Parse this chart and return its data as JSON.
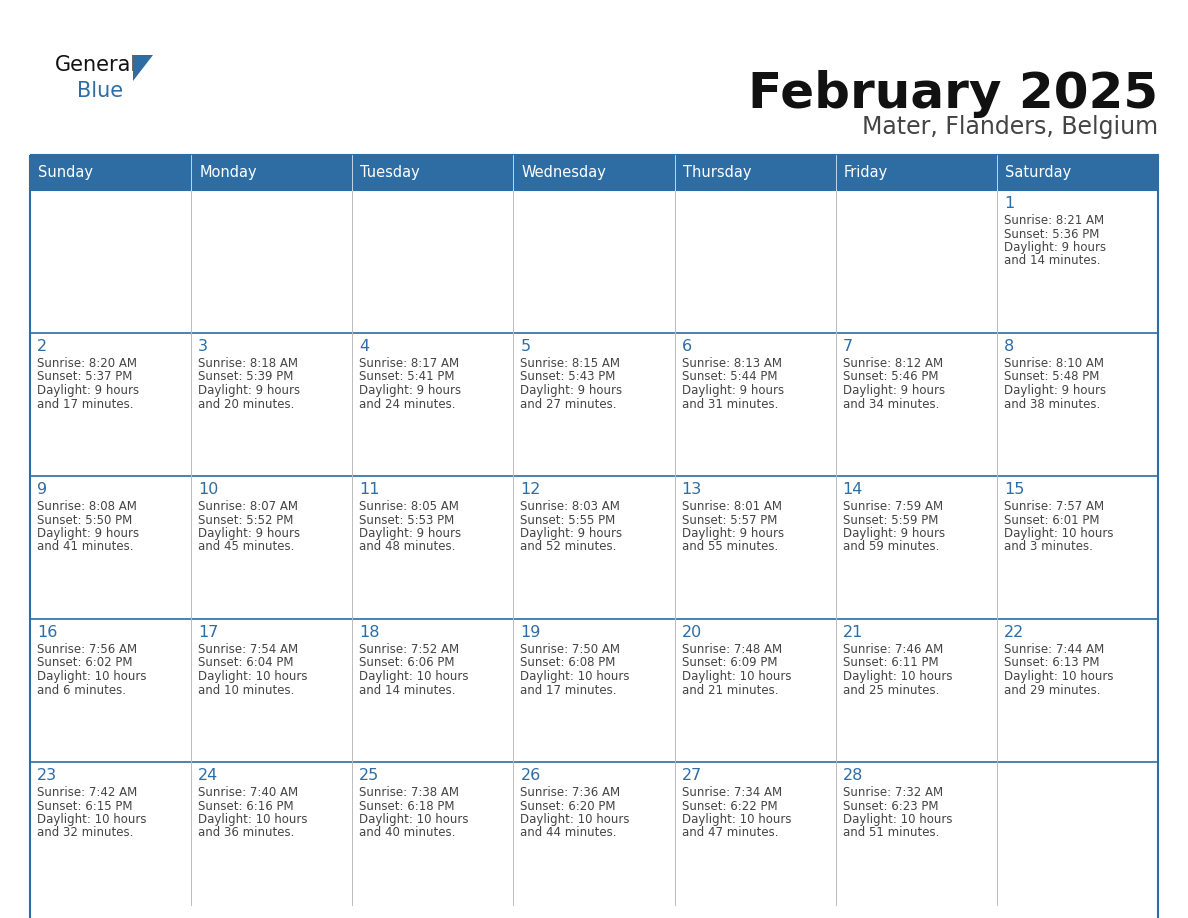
{
  "title": "February 2025",
  "subtitle": "Mater, Flanders, Belgium",
  "days_of_week": [
    "Sunday",
    "Monday",
    "Tuesday",
    "Wednesday",
    "Thursday",
    "Friday",
    "Saturday"
  ],
  "header_bg": "#2E6DA4",
  "header_text": "#FFFFFF",
  "cell_bg": "#FFFFFF",
  "row_separator_color": "#2E6DA4",
  "col_separator_color": "#CCCCCC",
  "text_color": "#444444",
  "day_number_color": "#2E6DA4",
  "title_color": "#111111",
  "subtitle_color": "#444444",
  "logo_text_color": "#111111",
  "logo_blue_color": "#2E6DA4",
  "calendar_data": {
    "1": {
      "sunrise": "8:21 AM",
      "sunset": "5:36 PM",
      "daylight": "9 hours and 14 minutes."
    },
    "2": {
      "sunrise": "8:20 AM",
      "sunset": "5:37 PM",
      "daylight": "9 hours and 17 minutes."
    },
    "3": {
      "sunrise": "8:18 AM",
      "sunset": "5:39 PM",
      "daylight": "9 hours and 20 minutes."
    },
    "4": {
      "sunrise": "8:17 AM",
      "sunset": "5:41 PM",
      "daylight": "9 hours and 24 minutes."
    },
    "5": {
      "sunrise": "8:15 AM",
      "sunset": "5:43 PM",
      "daylight": "9 hours and 27 minutes."
    },
    "6": {
      "sunrise": "8:13 AM",
      "sunset": "5:44 PM",
      "daylight": "9 hours and 31 minutes."
    },
    "7": {
      "sunrise": "8:12 AM",
      "sunset": "5:46 PM",
      "daylight": "9 hours and 34 minutes."
    },
    "8": {
      "sunrise": "8:10 AM",
      "sunset": "5:48 PM",
      "daylight": "9 hours and 38 minutes."
    },
    "9": {
      "sunrise": "8:08 AM",
      "sunset": "5:50 PM",
      "daylight": "9 hours and 41 minutes."
    },
    "10": {
      "sunrise": "8:07 AM",
      "sunset": "5:52 PM",
      "daylight": "9 hours and 45 minutes."
    },
    "11": {
      "sunrise": "8:05 AM",
      "sunset": "5:53 PM",
      "daylight": "9 hours and 48 minutes."
    },
    "12": {
      "sunrise": "8:03 AM",
      "sunset": "5:55 PM",
      "daylight": "9 hours and 52 minutes."
    },
    "13": {
      "sunrise": "8:01 AM",
      "sunset": "5:57 PM",
      "daylight": "9 hours and 55 minutes."
    },
    "14": {
      "sunrise": "7:59 AM",
      "sunset": "5:59 PM",
      "daylight": "9 hours and 59 minutes."
    },
    "15": {
      "sunrise": "7:57 AM",
      "sunset": "6:01 PM",
      "daylight": "10 hours and 3 minutes."
    },
    "16": {
      "sunrise": "7:56 AM",
      "sunset": "6:02 PM",
      "daylight": "10 hours and 6 minutes."
    },
    "17": {
      "sunrise": "7:54 AM",
      "sunset": "6:04 PM",
      "daylight": "10 hours and 10 minutes."
    },
    "18": {
      "sunrise": "7:52 AM",
      "sunset": "6:06 PM",
      "daylight": "10 hours and 14 minutes."
    },
    "19": {
      "sunrise": "7:50 AM",
      "sunset": "6:08 PM",
      "daylight": "10 hours and 17 minutes."
    },
    "20": {
      "sunrise": "7:48 AM",
      "sunset": "6:09 PM",
      "daylight": "10 hours and 21 minutes."
    },
    "21": {
      "sunrise": "7:46 AM",
      "sunset": "6:11 PM",
      "daylight": "10 hours and 25 minutes."
    },
    "22": {
      "sunrise": "7:44 AM",
      "sunset": "6:13 PM",
      "daylight": "10 hours and 29 minutes."
    },
    "23": {
      "sunrise": "7:42 AM",
      "sunset": "6:15 PM",
      "daylight": "10 hours and 32 minutes."
    },
    "24": {
      "sunrise": "7:40 AM",
      "sunset": "6:16 PM",
      "daylight": "10 hours and 36 minutes."
    },
    "25": {
      "sunrise": "7:38 AM",
      "sunset": "6:18 PM",
      "daylight": "10 hours and 40 minutes."
    },
    "26": {
      "sunrise": "7:36 AM",
      "sunset": "6:20 PM",
      "daylight": "10 hours and 44 minutes."
    },
    "27": {
      "sunrise": "7:34 AM",
      "sunset": "6:22 PM",
      "daylight": "10 hours and 47 minutes."
    },
    "28": {
      "sunrise": "7:32 AM",
      "sunset": "6:23 PM",
      "daylight": "10 hours and 51 minutes."
    }
  },
  "week_layout": [
    [
      null,
      null,
      null,
      null,
      null,
      null,
      1
    ],
    [
      2,
      3,
      4,
      5,
      6,
      7,
      8
    ],
    [
      9,
      10,
      11,
      12,
      13,
      14,
      15
    ],
    [
      16,
      17,
      18,
      19,
      20,
      21,
      22
    ],
    [
      23,
      24,
      25,
      26,
      27,
      28,
      null
    ]
  ]
}
